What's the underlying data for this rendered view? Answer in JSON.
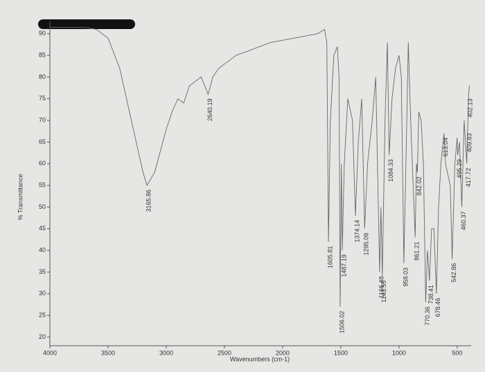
{
  "chart_data": {
    "type": "line",
    "xlabel": "Wavenumbers (cm-1)",
    "ylabel": "% Transmittance",
    "xlim": [
      4000,
      380
    ],
    "ylim": [
      18,
      93
    ],
    "xticks": [
      4000,
      3500,
      3000,
      2500,
      2000,
      1500,
      1000,
      500
    ],
    "yticks": [
      20,
      25,
      30,
      35,
      40,
      45,
      50,
      55,
      60,
      65,
      70,
      75,
      80,
      85,
      90
    ],
    "series": [
      {
        "color": "#666666",
        "x": [
          4000,
          3700,
          3600,
          3500,
          3400,
          3300,
          3200,
          3165.86,
          3100,
          3000,
          2950,
          2900,
          2850,
          2800,
          2750,
          2700,
          2640.19,
          2600,
          2550,
          2500,
          2400,
          2300,
          2200,
          2100,
          2000,
          1900,
          1800,
          1700,
          1640,
          1620,
          1605.81,
          1590,
          1560,
          1530,
          1515,
          1506.02,
          1495,
          1487.19,
          1470,
          1440,
          1400,
          1374.14,
          1350,
          1320,
          1295.09,
          1270,
          1230,
          1200,
          1166.48,
          1155,
          1143.55,
          1120,
          1100,
          1084.33,
          1060,
          1030,
          1000,
          980,
          958.03,
          940,
          920,
          900,
          861.21,
          850,
          842.02,
          830,
          810,
          790,
          770.36,
          755,
          738.41,
          720,
          700,
          678.46,
          660,
          640,
          613.04,
          600,
          560,
          542.86,
          520,
          500,
          495.29,
          480,
          460.37,
          440,
          417.72,
          409.83,
          402.13,
          395
        ],
        "values": [
          91.5,
          91.5,
          91,
          89,
          82,
          70,
          58,
          55,
          58,
          68,
          72,
          75,
          74,
          78,
          79,
          80,
          76,
          80,
          82,
          83,
          85,
          86,
          87,
          88,
          88.5,
          89,
          89.5,
          90,
          91,
          88,
          42,
          70,
          85,
          87,
          80,
          27,
          60,
          40,
          60,
          75,
          70,
          48,
          65,
          75,
          45,
          60,
          70,
          80,
          35,
          50,
          34,
          70,
          88,
          62,
          75,
          82,
          85,
          80,
          37,
          60,
          88,
          70,
          43,
          60,
          58,
          72,
          70,
          60,
          28,
          40,
          33,
          45,
          45,
          30,
          50,
          60,
          67,
          60,
          55,
          38,
          60,
          66,
          62,
          65,
          50,
          70,
          60,
          68,
          76,
          78
        ]
      }
    ],
    "annotations": [
      {
        "x": 3165.86,
        "y": 55
      },
      {
        "x": 2640.19,
        "y": 76
      },
      {
        "x": 1605.81,
        "y": 42
      },
      {
        "x": 1506.02,
        "y": 27
      },
      {
        "x": 1487.19,
        "y": 40
      },
      {
        "x": 1374.14,
        "y": 48
      },
      {
        "x": 1295.09,
        "y": 45
      },
      {
        "x": 1166.48,
        "y": 35
      },
      {
        "x": 1143.55,
        "y": 34
      },
      {
        "x": 1084.33,
        "y": 62
      },
      {
        "x": 958.03,
        "y": 37
      },
      {
        "x": 861.21,
        "y": 43
      },
      {
        "x": 842.02,
        "y": 58
      },
      {
        "x": 770.36,
        "y": 28
      },
      {
        "x": 738.41,
        "y": 33
      },
      {
        "x": 678.46,
        "y": 30
      },
      {
        "x": 613.04,
        "y": 67
      },
      {
        "x": 542.86,
        "y": 38
      },
      {
        "x": 495.29,
        "y": 62
      },
      {
        "x": 460.37,
        "y": 50
      },
      {
        "x": 417.72,
        "y": 60
      },
      {
        "x": 409.83,
        "y": 68
      },
      {
        "x": 402.13,
        "y": 76
      }
    ]
  }
}
